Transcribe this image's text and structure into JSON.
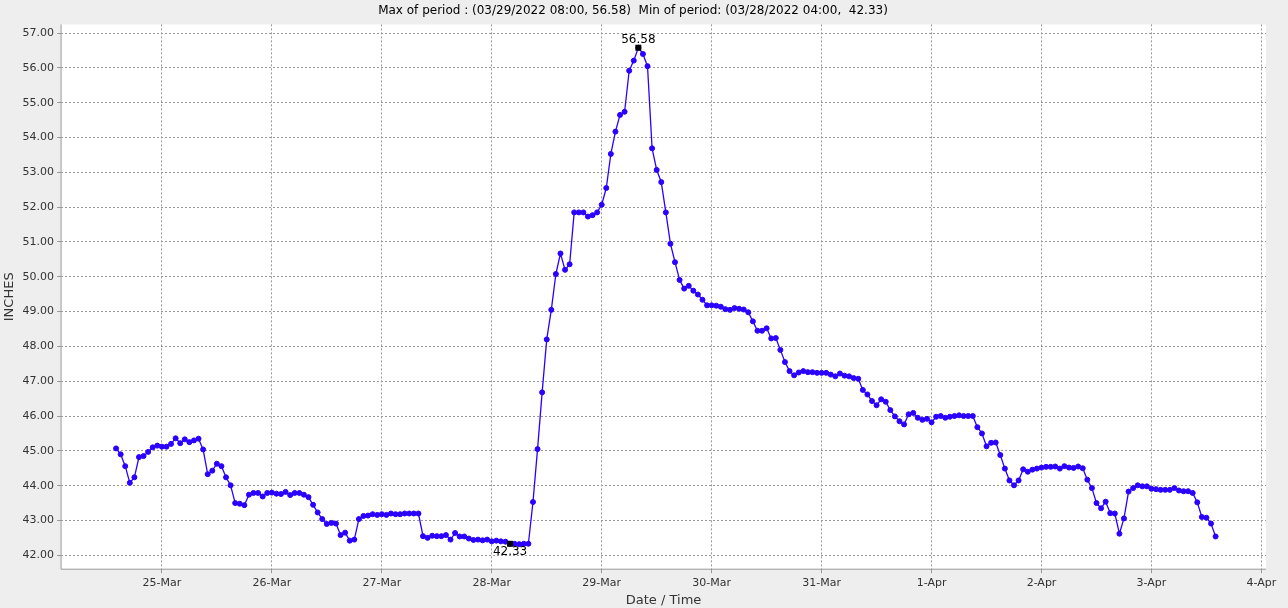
{
  "chart_data": {
    "type": "line",
    "title": "Max of period : (03/29/2022 08:00, 56.58)  Min of period: (03/28/2022 04:00,  42.33)",
    "xlabel": "Date / Time",
    "ylabel": "INCHES",
    "x": [
      "2022-03-24T14:00",
      "2022-03-24T15:00",
      "2022-03-24T16:00",
      "2022-03-24T17:00",
      "2022-03-24T18:00",
      "2022-03-24T19:00",
      "2022-03-24T20:00",
      "2022-03-24T21:00",
      "2022-03-24T22:00",
      "2022-03-24T23:00",
      "2022-03-25T00:00",
      "2022-03-25T01:00",
      "2022-03-25T02:00",
      "2022-03-25T03:00",
      "2022-03-25T04:00",
      "2022-03-25T05:00",
      "2022-03-25T06:00",
      "2022-03-25T07:00",
      "2022-03-25T08:00",
      "2022-03-25T09:00",
      "2022-03-25T10:00",
      "2022-03-25T11:00",
      "2022-03-25T12:00",
      "2022-03-25T13:00",
      "2022-03-25T14:00",
      "2022-03-25T15:00",
      "2022-03-25T16:00",
      "2022-03-25T17:00",
      "2022-03-25T18:00",
      "2022-03-25T19:00",
      "2022-03-25T20:00",
      "2022-03-25T21:00",
      "2022-03-25T22:00",
      "2022-03-25T23:00",
      "2022-03-26T00:00",
      "2022-03-26T01:00",
      "2022-03-26T02:00",
      "2022-03-26T03:00",
      "2022-03-26T04:00",
      "2022-03-26T05:00",
      "2022-03-26T06:00",
      "2022-03-26T07:00",
      "2022-03-26T08:00",
      "2022-03-26T09:00",
      "2022-03-26T10:00",
      "2022-03-26T11:00",
      "2022-03-26T12:00",
      "2022-03-26T13:00",
      "2022-03-26T14:00",
      "2022-03-26T15:00",
      "2022-03-26T16:00",
      "2022-03-26T17:00",
      "2022-03-26T18:00",
      "2022-03-26T19:00",
      "2022-03-26T20:00",
      "2022-03-26T21:00",
      "2022-03-26T22:00",
      "2022-03-26T23:00",
      "2022-03-27T00:00",
      "2022-03-27T01:00",
      "2022-03-27T02:00",
      "2022-03-27T03:00",
      "2022-03-27T04:00",
      "2022-03-27T05:00",
      "2022-03-27T06:00",
      "2022-03-27T07:00",
      "2022-03-27T08:00",
      "2022-03-27T09:00",
      "2022-03-27T10:00",
      "2022-03-27T11:00",
      "2022-03-27T12:00",
      "2022-03-27T13:00",
      "2022-03-27T14:00",
      "2022-03-27T15:00",
      "2022-03-27T16:00",
      "2022-03-27T17:00",
      "2022-03-27T18:00",
      "2022-03-27T19:00",
      "2022-03-27T20:00",
      "2022-03-27T21:00",
      "2022-03-27T22:00",
      "2022-03-27T23:00",
      "2022-03-28T00:00",
      "2022-03-28T01:00",
      "2022-03-28T02:00",
      "2022-03-28T03:00",
      "2022-03-28T04:00",
      "2022-03-28T05:00",
      "2022-03-28T06:00",
      "2022-03-28T07:00",
      "2022-03-28T08:00",
      "2022-03-28T09:00",
      "2022-03-28T10:00",
      "2022-03-28T11:00",
      "2022-03-28T12:00",
      "2022-03-28T13:00",
      "2022-03-28T14:00",
      "2022-03-28T15:00",
      "2022-03-28T16:00",
      "2022-03-28T17:00",
      "2022-03-28T18:00",
      "2022-03-28T19:00",
      "2022-03-28T20:00",
      "2022-03-28T21:00",
      "2022-03-28T22:00",
      "2022-03-28T23:00",
      "2022-03-29T00:00",
      "2022-03-29T01:00",
      "2022-03-29T02:00",
      "2022-03-29T03:00",
      "2022-03-29T04:00",
      "2022-03-29T05:00",
      "2022-03-29T06:00",
      "2022-03-29T07:00",
      "2022-03-29T08:00",
      "2022-03-29T09:00",
      "2022-03-29T10:00",
      "2022-03-29T11:00",
      "2022-03-29T12:00",
      "2022-03-29T13:00",
      "2022-03-29T14:00",
      "2022-03-29T15:00",
      "2022-03-29T16:00",
      "2022-03-29T17:00",
      "2022-03-29T18:00",
      "2022-03-29T19:00",
      "2022-03-29T20:00",
      "2022-03-29T21:00",
      "2022-03-29T22:00",
      "2022-03-29T23:00",
      "2022-03-30T00:00",
      "2022-03-30T01:00",
      "2022-03-30T02:00",
      "2022-03-30T03:00",
      "2022-03-30T04:00",
      "2022-03-30T05:00",
      "2022-03-30T06:00",
      "2022-03-30T07:00",
      "2022-03-30T08:00",
      "2022-03-30T09:00",
      "2022-03-30T10:00",
      "2022-03-30T11:00",
      "2022-03-30T12:00",
      "2022-03-30T13:00",
      "2022-03-30T14:00",
      "2022-03-30T15:00",
      "2022-03-30T16:00",
      "2022-03-30T17:00",
      "2022-03-30T18:00",
      "2022-03-30T19:00",
      "2022-03-30T20:00",
      "2022-03-30T21:00",
      "2022-03-30T22:00",
      "2022-03-30T23:00",
      "2022-03-31T00:00",
      "2022-03-31T01:00",
      "2022-03-31T02:00",
      "2022-03-31T03:00",
      "2022-03-31T04:00",
      "2022-03-31T05:00",
      "2022-03-31T06:00",
      "2022-03-31T07:00",
      "2022-03-31T08:00",
      "2022-03-31T09:00",
      "2022-03-31T10:00",
      "2022-03-31T11:00",
      "2022-03-31T12:00",
      "2022-03-31T13:00",
      "2022-03-31T14:00",
      "2022-03-31T15:00",
      "2022-03-31T16:00",
      "2022-03-31T17:00",
      "2022-03-31T18:00",
      "2022-03-31T19:00",
      "2022-03-31T20:00",
      "2022-03-31T21:00",
      "2022-03-31T22:00",
      "2022-03-31T23:00",
      "2022-04-01T00:00",
      "2022-04-01T01:00",
      "2022-04-01T02:00",
      "2022-04-01T03:00",
      "2022-04-01T04:00",
      "2022-04-01T05:00",
      "2022-04-01T06:00",
      "2022-04-01T07:00",
      "2022-04-01T08:00",
      "2022-04-01T09:00",
      "2022-04-01T10:00",
      "2022-04-01T11:00",
      "2022-04-01T12:00",
      "2022-04-01T13:00",
      "2022-04-01T14:00",
      "2022-04-01T15:00",
      "2022-04-01T16:00",
      "2022-04-01T17:00",
      "2022-04-01T18:00",
      "2022-04-01T19:00",
      "2022-04-01T20:00",
      "2022-04-01T21:00",
      "2022-04-01T22:00",
      "2022-04-01T23:00",
      "2022-04-02T00:00",
      "2022-04-02T01:00",
      "2022-04-02T02:00",
      "2022-04-02T03:00",
      "2022-04-02T04:00",
      "2022-04-02T05:00",
      "2022-04-02T06:00",
      "2022-04-02T07:00",
      "2022-04-02T08:00",
      "2022-04-02T09:00",
      "2022-04-02T10:00",
      "2022-04-02T11:00",
      "2022-04-02T12:00",
      "2022-04-02T13:00",
      "2022-04-02T14:00",
      "2022-04-02T15:00",
      "2022-04-02T16:00",
      "2022-04-02T17:00",
      "2022-04-02T18:00",
      "2022-04-02T19:00",
      "2022-04-02T20:00",
      "2022-04-02T21:00",
      "2022-04-02T22:00",
      "2022-04-02T23:00",
      "2022-04-03T00:00",
      "2022-04-03T01:00",
      "2022-04-03T02:00",
      "2022-04-03T03:00",
      "2022-04-03T04:00",
      "2022-04-03T05:00",
      "2022-04-03T06:00",
      "2022-04-03T07:00",
      "2022-04-03T08:00",
      "2022-04-03T09:00",
      "2022-04-03T10:00",
      "2022-04-03T11:00",
      "2022-04-03T12:00",
      "2022-04-03T13:00",
      "2022-04-03T14:00"
    ],
    "series": [
      {
        "color": "#2a00ff",
        "values": [
          45.07,
          44.9,
          44.56,
          44.08,
          44.24,
          44.82,
          44.85,
          44.97,
          45.1,
          45.15,
          45.12,
          45.12,
          45.2,
          45.36,
          45.22,
          45.33,
          45.25,
          45.3,
          45.35,
          45.04,
          44.33,
          44.43,
          44.63,
          44.56,
          44.24,
          44.01,
          43.5,
          43.48,
          43.44,
          43.74,
          43.79,
          43.79,
          43.69,
          43.79,
          43.8,
          43.77,
          43.76,
          43.82,
          43.73,
          43.79,
          43.79,
          43.74,
          43.67,
          43.45,
          43.23,
          43.04,
          42.9,
          42.93,
          42.91,
          42.58,
          42.65,
          42.42,
          42.45,
          43.04,
          43.13,
          43.14,
          43.18,
          43.16,
          43.18,
          43.16,
          43.2,
          43.18,
          43.18,
          43.2,
          43.2,
          43.2,
          43.2,
          42.55,
          42.5,
          42.56,
          42.55,
          42.55,
          42.58,
          42.45,
          42.64,
          42.54,
          42.54,
          42.48,
          42.44,
          42.45,
          42.43,
          42.45,
          42.4,
          42.42,
          42.4,
          42.39,
          42.33,
          42.33,
          42.32,
          42.33,
          42.33,
          43.53,
          45.05,
          46.68,
          48.2,
          49.05,
          50.08,
          50.67,
          50.2,
          50.36,
          51.85,
          51.85,
          51.85,
          51.73,
          51.77,
          51.85,
          52.07,
          52.55,
          53.53,
          54.17,
          54.65,
          54.74,
          55.92,
          56.21,
          56.58,
          56.4,
          56.05,
          53.69,
          53.07,
          52.72,
          51.85,
          50.95,
          50.42,
          49.91,
          49.66,
          49.74,
          49.6,
          49.49,
          49.34,
          49.18,
          49.18,
          49.17,
          49.14,
          49.07,
          49.05,
          49.1,
          49.08,
          49.06,
          48.98,
          48.72,
          48.45,
          48.45,
          48.52,
          48.23,
          48.24,
          47.9,
          47.55,
          47.29,
          47.17,
          47.25,
          47.29,
          47.26,
          47.26,
          47.24,
          47.24,
          47.24,
          47.19,
          47.14,
          47.22,
          47.16,
          47.14,
          47.09,
          47.07,
          46.75,
          46.62,
          46.43,
          46.31,
          46.48,
          46.41,
          46.17,
          45.99,
          45.85,
          45.76,
          46.05,
          46.09,
          45.95,
          45.89,
          45.92,
          45.82,
          45.98,
          46.0,
          45.95,
          45.98,
          46.0,
          46.02,
          46.0,
          46.0,
          46.0,
          45.68,
          45.5,
          45.13,
          45.23,
          45.24,
          44.88,
          44.49,
          44.15,
          44.01,
          44.15,
          44.47,
          44.4,
          44.46,
          44.49,
          44.52,
          44.54,
          44.54,
          44.55,
          44.49,
          44.56,
          44.52,
          44.51,
          44.55,
          44.5,
          44.17,
          43.93,
          43.5,
          43.35,
          43.54,
          43.21,
          43.2,
          42.62,
          43.06,
          43.83,
          43.93,
          44.01,
          43.98,
          43.98,
          43.91,
          43.9,
          43.88,
          43.88,
          43.88,
          43.93,
          43.86,
          43.84,
          43.84,
          43.79,
          43.52,
          43.1,
          43.08,
          42.91,
          42.54
        ]
      }
    ],
    "xlim": [
      "2022-03-24T02:00",
      "2022-04-04T01:00"
    ],
    "xticks": [
      {
        "value": "2022-03-25",
        "label": "25-Mar"
      },
      {
        "value": "2022-03-26",
        "label": "26-Mar"
      },
      {
        "value": "2022-03-27",
        "label": "27-Mar"
      },
      {
        "value": "2022-03-28",
        "label": "28-Mar"
      },
      {
        "value": "2022-03-29",
        "label": "29-Mar"
      },
      {
        "value": "2022-03-30",
        "label": "30-Mar"
      },
      {
        "value": "2022-03-31",
        "label": "31-Mar"
      },
      {
        "value": "2022-04-01",
        "label": "1-Apr"
      },
      {
        "value": "2022-04-02",
        "label": "2-Apr"
      },
      {
        "value": "2022-04-03",
        "label": "3-Apr"
      },
      {
        "value": "2022-04-04",
        "label": "4-Apr"
      }
    ],
    "ylim": [
      41.6,
      57.25
    ],
    "yticks": [
      {
        "value": 42,
        "label": "42.00"
      },
      {
        "value": 43,
        "label": "43.00"
      },
      {
        "value": 44,
        "label": "44.00"
      },
      {
        "value": 45,
        "label": "45.00"
      },
      {
        "value": 46,
        "label": "46.00"
      },
      {
        "value": 47,
        "label": "47.00"
      },
      {
        "value": 48,
        "label": "48.00"
      },
      {
        "value": 49,
        "label": "49.00"
      },
      {
        "value": 50,
        "label": "50.00"
      },
      {
        "value": 51,
        "label": "51.00"
      },
      {
        "value": 52,
        "label": "52.00"
      },
      {
        "value": 53,
        "label": "53.00"
      },
      {
        "value": 54,
        "label": "54.00"
      },
      {
        "value": 55,
        "label": "55.00"
      },
      {
        "value": 56,
        "label": "56.00"
      },
      {
        "value": 57,
        "label": "57.00"
      }
    ],
    "grid": true,
    "legend": false,
    "marker": "circle",
    "line_style": "solid",
    "annotations": [
      {
        "text": "56.58",
        "x": "2022-03-29T08:00",
        "y": 56.58
      },
      {
        "text": "42.33",
        "x": "2022-03-28T04:00",
        "y": 42.33
      }
    ]
  }
}
